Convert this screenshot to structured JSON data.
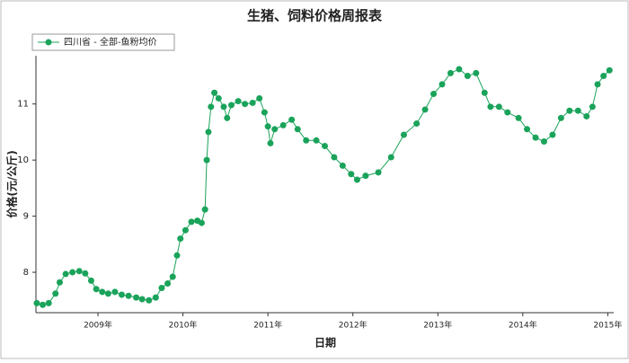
{
  "chart_data": {
    "type": "line",
    "title": "生猪、饲料价格周报表",
    "x_label": "日期",
    "y_label": "价格(元/公斤)",
    "xlim": [
      2008.27,
      2015.07
    ],
    "ylim": [
      7.28,
      11.86
    ],
    "xticks": [
      {
        "value": 2009,
        "label": "2009年"
      },
      {
        "value": 2010,
        "label": "2010年"
      },
      {
        "value": 2011,
        "label": "2011年"
      },
      {
        "value": 2012,
        "label": "2012年"
      },
      {
        "value": 2013,
        "label": "2013年"
      },
      {
        "value": 2014,
        "label": "2014年"
      },
      {
        "value": 2015,
        "label": "2015年"
      }
    ],
    "yticks": [
      8,
      9,
      10,
      11
    ],
    "legend": "top-left",
    "series": [
      {
        "name": "四川省 - 全部-鱼粉均价",
        "color": "#1aa35a",
        "x": [
          2008.28,
          2008.35,
          2008.42,
          2008.5,
          2008.55,
          2008.62,
          2008.7,
          2008.78,
          2008.85,
          2008.92,
          2008.98,
          2009.05,
          2009.12,
          2009.2,
          2009.28,
          2009.36,
          2009.45,
          2009.52,
          2009.6,
          2009.68,
          2009.75,
          2009.82,
          2009.88,
          2009.93,
          2009.97,
          2010.03,
          2010.1,
          2010.17,
          2010.22,
          2010.26,
          2010.28,
          2010.3,
          2010.33,
          2010.37,
          2010.42,
          2010.48,
          2010.52,
          2010.57,
          2010.65,
          2010.73,
          2010.82,
          2010.9,
          2010.96,
          2011.0,
          2011.03,
          2011.08,
          2011.18,
          2011.28,
          2011.35,
          2011.45,
          2011.57,
          2011.67,
          2011.78,
          2011.88,
          2011.98,
          2012.05,
          2012.15,
          2012.3,
          2012.45,
          2012.6,
          2012.75,
          2012.85,
          2012.95,
          2013.05,
          2013.15,
          2013.25,
          2013.35,
          2013.45,
          2013.55,
          2013.62,
          2013.72,
          2013.82,
          2013.95,
          2014.05,
          2014.15,
          2014.25,
          2014.35,
          2014.45,
          2014.55,
          2014.65,
          2014.75,
          2014.82,
          2014.88,
          2014.95,
          2015.02
        ],
        "values": [
          7.45,
          7.42,
          7.45,
          7.62,
          7.82,
          7.97,
          8.0,
          8.02,
          7.98,
          7.85,
          7.7,
          7.65,
          7.62,
          7.65,
          7.6,
          7.58,
          7.55,
          7.52,
          7.5,
          7.55,
          7.72,
          7.8,
          7.92,
          8.3,
          8.6,
          8.75,
          8.9,
          8.92,
          8.88,
          9.12,
          10.0,
          10.5,
          10.95,
          11.2,
          11.1,
          10.95,
          10.75,
          10.98,
          11.05,
          11.0,
          11.02,
          11.1,
          10.85,
          10.6,
          10.3,
          10.55,
          10.62,
          10.72,
          10.55,
          10.35,
          10.35,
          10.25,
          10.05,
          9.9,
          9.75,
          9.65,
          9.72,
          9.78,
          10.05,
          10.45,
          10.65,
          10.9,
          11.18,
          11.35,
          11.55,
          11.62,
          11.5,
          11.55,
          11.2,
          10.95,
          10.95,
          10.85,
          10.75,
          10.55,
          10.4,
          10.33,
          10.45,
          10.75,
          10.88,
          10.88,
          10.78,
          10.95,
          11.35,
          11.5,
          11.6
        ]
      }
    ]
  }
}
